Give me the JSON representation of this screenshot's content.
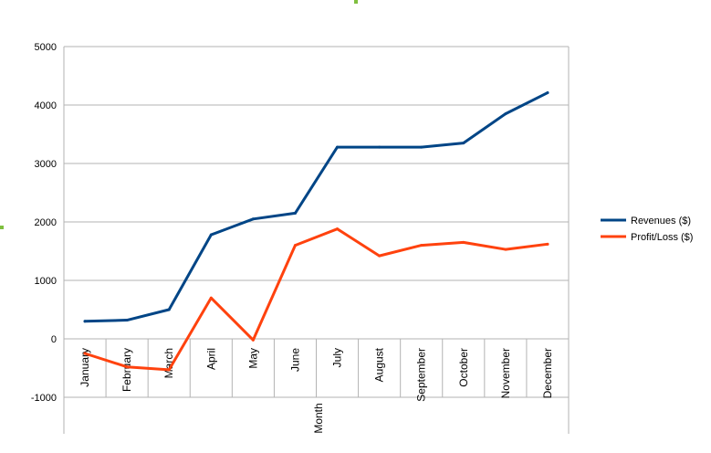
{
  "chart_data": {
    "type": "line",
    "title": "",
    "xlabel": "Month",
    "ylabel": "",
    "categories": [
      "January",
      "February",
      "March",
      "April",
      "May",
      "June",
      "July",
      "August",
      "September",
      "October",
      "November",
      "December"
    ],
    "ylim": [
      -1000,
      5000
    ],
    "yticks": [
      5000,
      4000,
      3000,
      2000,
      1000,
      0,
      -1000
    ],
    "grid": true,
    "legend": "right",
    "series": [
      {
        "name": "Revenues ($)",
        "color": "#004586",
        "values": [
          300,
          320,
          500,
          1780,
          2050,
          2150,
          3280,
          3280,
          3280,
          3350,
          3850,
          4210
        ]
      },
      {
        "name": "Profit/Loss ($)",
        "color": "#ff420e",
        "values": [
          -250,
          -480,
          -530,
          700,
          -20,
          1600,
          1880,
          1420,
          1600,
          1650,
          1530,
          1620
        ]
      }
    ]
  }
}
